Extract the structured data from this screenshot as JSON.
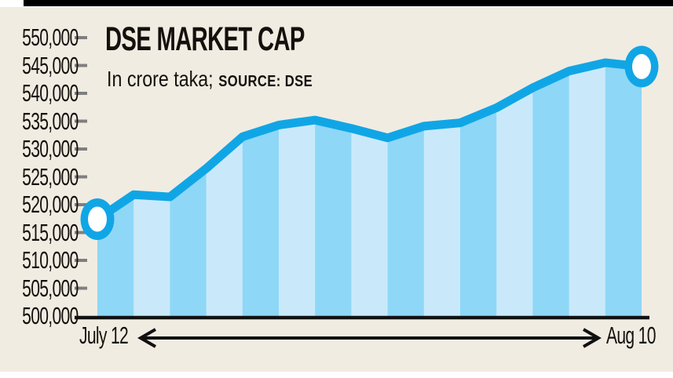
{
  "header": {
    "title": "DSE MARKET CAP",
    "units": "In crore taka;",
    "source": "SOURCE: DSE"
  },
  "chart_data": {
    "type": "area",
    "title": "DSE MARKET CAP",
    "units_note": "In crore taka",
    "source": "DSE",
    "x_start_label": "July 12",
    "x_end_label": "Aug 10",
    "ylim": [
      500000,
      550000
    ],
    "ytick_step": 5000,
    "yticks": [
      "550,000",
      "545,000",
      "540,000",
      "535,000",
      "530,000",
      "525,000",
      "520,000",
      "515,000",
      "510,000",
      "505,000",
      "500,000"
    ],
    "values": [
      517400,
      521800,
      521400,
      526500,
      532200,
      534300,
      535200,
      533700,
      532000,
      534100,
      534700,
      537400,
      541000,
      544000,
      545500,
      544800
    ],
    "marked_points": {
      "first_value": 517400,
      "last_value": 544800
    },
    "grid": "off",
    "legend": "none",
    "colors": {
      "line": "#10a6e6",
      "band_dark": "#8ed7f7",
      "band_light": "#c9e9fb",
      "background": "#f0ece2",
      "tick": "#7f7f7f",
      "text": "#14110d",
      "top_bar": "#000000"
    }
  }
}
